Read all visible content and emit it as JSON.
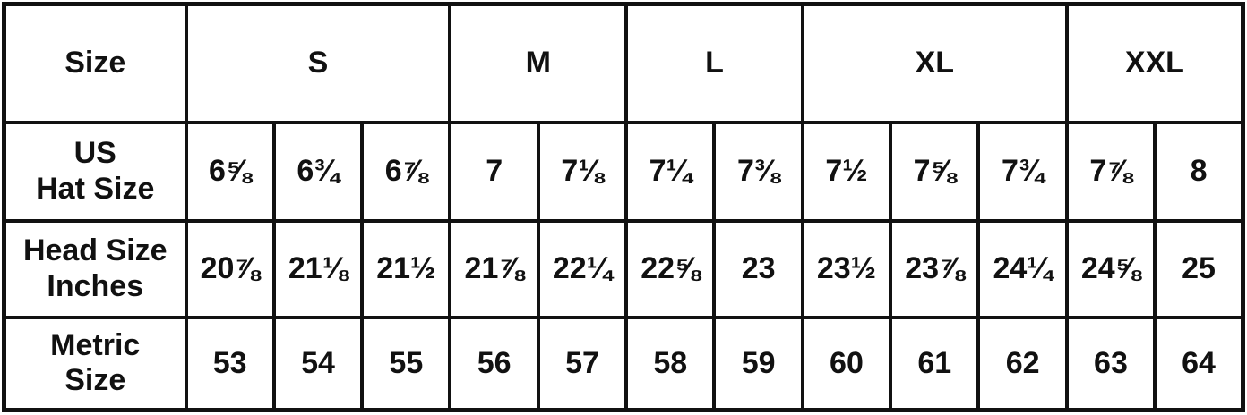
{
  "chart_data": {
    "type": "table",
    "corner_label": "Size",
    "size_groups": [
      {
        "label": "S",
        "span": 3
      },
      {
        "label": "M",
        "span": 2
      },
      {
        "label": "L",
        "span": 2
      },
      {
        "label": "XL",
        "span": 3
      },
      {
        "label": "XXL",
        "span": 2
      }
    ],
    "rows": [
      {
        "label": "US Hat Size",
        "label_lines": [
          "US",
          "Hat Size"
        ],
        "values": [
          "6⅝",
          "6¾",
          "6⅞",
          "7",
          "7⅛",
          "7¼",
          "7⅜",
          "7½",
          "7⅝",
          "7¾",
          "7⅞",
          "8"
        ]
      },
      {
        "label": "Head Size Inches",
        "label_lines": [
          "Head Size",
          "Inches"
        ],
        "values": [
          "20⅞",
          "21⅛",
          "21½",
          "21⅞",
          "22¼",
          "22⅝",
          "23",
          "23½",
          "23⅞",
          "24¼",
          "24⅝",
          "25"
        ]
      },
      {
        "label": "Metric Size",
        "label_lines": [
          "Metric",
          "Size"
        ],
        "values": [
          "53",
          "54",
          "55",
          "56",
          "57",
          "58",
          "59",
          "60",
          "61",
          "62",
          "63",
          "64"
        ]
      }
    ],
    "colors": {
      "border": "#111111",
      "text": "#111111",
      "background": "#ffffff"
    },
    "layout": {
      "grid": "on",
      "columns": 13,
      "data_columns": 12
    }
  }
}
